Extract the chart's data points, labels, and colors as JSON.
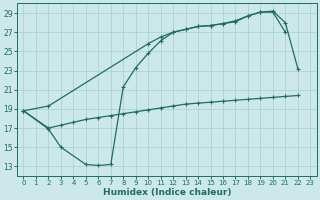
{
  "xlabel": "Humidex (Indice chaleur)",
  "bg_color": "#cce8e8",
  "grid_color": "#aad4d4",
  "line_color": "#1e6e5e",
  "xlim": [
    -0.5,
    23.5
  ],
  "ylim": [
    12,
    30
  ],
  "xticks": [
    0,
    1,
    2,
    3,
    4,
    5,
    6,
    7,
    8,
    9,
    10,
    11,
    12,
    13,
    14,
    15,
    16,
    17,
    18,
    19,
    20,
    21,
    22,
    23
  ],
  "yticks": [
    13,
    15,
    17,
    19,
    21,
    23,
    25,
    27,
    29
  ],
  "line1_x": [
    0,
    2,
    10,
    11,
    12,
    13,
    14,
    15,
    16,
    17,
    18,
    19,
    20,
    21,
    22
  ],
  "line1_y": [
    18.8,
    19.3,
    25.8,
    26.5,
    27.0,
    27.3,
    27.6,
    27.7,
    27.9,
    28.2,
    28.7,
    29.1,
    29.2,
    28.0,
    23.2
  ],
  "line2_x": [
    0,
    2,
    3,
    5,
    6,
    7,
    8,
    9,
    10,
    11,
    12,
    13,
    14,
    15,
    16,
    17,
    18,
    19,
    20,
    21
  ],
  "line2_y": [
    18.8,
    16.9,
    15.0,
    13.2,
    13.1,
    13.2,
    21.3,
    23.3,
    24.8,
    26.1,
    27.0,
    27.3,
    27.6,
    27.7,
    27.9,
    28.1,
    28.7,
    29.1,
    29.1,
    27.0
  ],
  "line3_x": [
    0,
    2,
    3,
    4,
    5,
    6,
    7,
    8,
    9,
    10,
    11,
    12,
    13,
    14,
    15,
    16,
    17,
    18,
    19,
    20,
    21,
    22
  ],
  "line3_y": [
    18.8,
    17.0,
    17.3,
    17.6,
    17.9,
    18.1,
    18.3,
    18.5,
    18.7,
    18.9,
    19.1,
    19.3,
    19.5,
    19.6,
    19.7,
    19.8,
    19.9,
    20.0,
    20.1,
    20.2,
    20.3,
    20.4
  ]
}
